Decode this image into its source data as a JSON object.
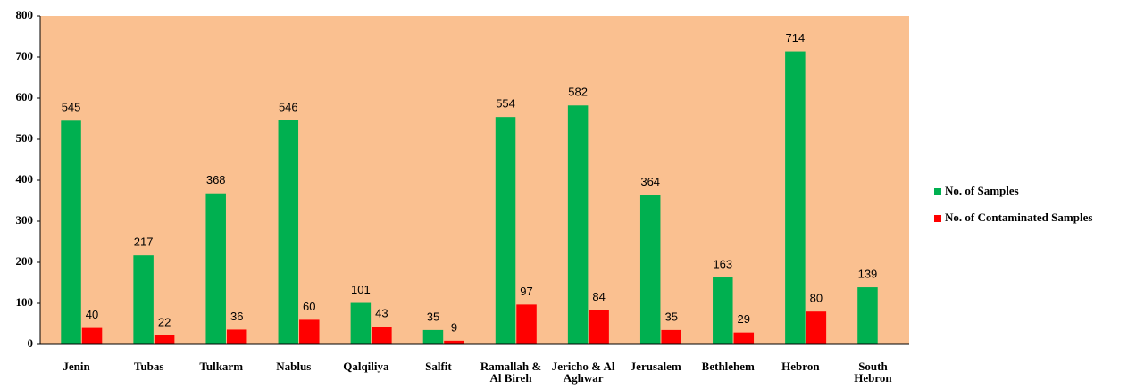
{
  "chart_data": {
    "type": "bar",
    "categories": [
      "Jenin",
      "Tubas",
      "Tulkarm",
      "Nablus",
      "Qalqiliya",
      "Salfit",
      "Ramallah & Al Bireh",
      "Jericho & Al Aghwar",
      "Jerusalem",
      "Bethlehem",
      "Hebron",
      "South Hebron"
    ],
    "series": [
      {
        "name": "No. of Samples",
        "color": "#00b050",
        "values": [
          545,
          217,
          368,
          546,
          101,
          35,
          554,
          582,
          364,
          163,
          714,
          139
        ]
      },
      {
        "name": "No. of Contaminated Samples",
        "color": "#ff0000",
        "values": [
          40,
          22,
          36,
          60,
          43,
          9,
          97,
          84,
          35,
          29,
          80,
          null
        ]
      }
    ],
    "ylim": [
      0,
      800
    ],
    "yticks": [
      0,
      100,
      200,
      300,
      400,
      500,
      600,
      700,
      800
    ],
    "grid": false,
    "legend": "right",
    "background": "#fac090"
  }
}
